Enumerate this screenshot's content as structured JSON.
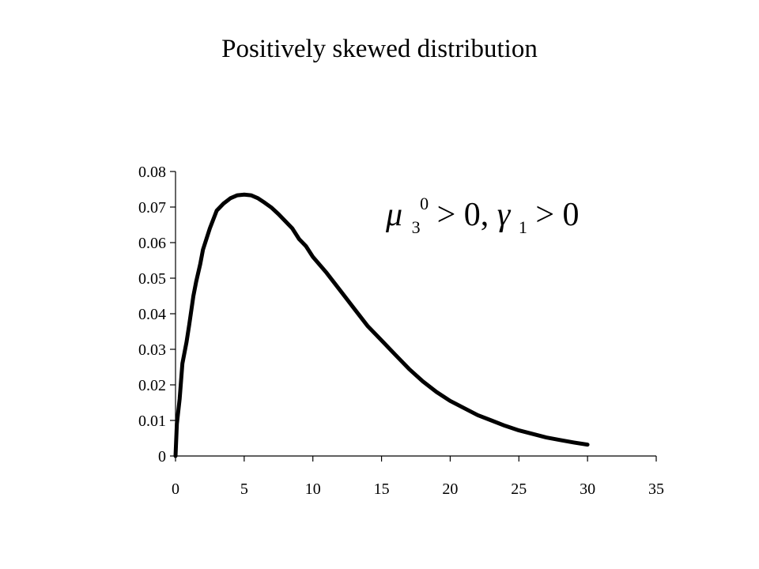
{
  "slide": {
    "title": "Positively skewed distribution"
  },
  "chart_data": {
    "type": "line",
    "title": "Positively skewed distribution",
    "xlabel": "",
    "ylabel": "",
    "xlim": [
      0,
      35
    ],
    "ylim": [
      0,
      0.08
    ],
    "x_ticks": [
      0,
      5,
      10,
      15,
      20,
      25,
      30,
      35
    ],
    "y_ticks": [
      0,
      0.01,
      0.02,
      0.03,
      0.04,
      0.05,
      0.06,
      0.07,
      0.08
    ],
    "x_tick_labels": [
      "0",
      "5",
      "10",
      "15",
      "20",
      "25",
      "30",
      "35"
    ],
    "y_tick_labels": [
      "0",
      "0.01",
      "0.02",
      "0.03",
      "0.04",
      "0.05",
      "0.06",
      "0.07",
      "0.08"
    ],
    "grid": false,
    "legend": "none",
    "line_color": "#000000",
    "annotation": {
      "mu": "μ",
      "mu_sub": "3",
      "mu_sup": "0",
      "mid": " > 0, ",
      "gamma": "γ",
      "gamma_sub": "1",
      "end": " > 0"
    },
    "series": [
      {
        "x": [
          0,
          0.1,
          0.3,
          0.5,
          0.8,
          1,
          1.3,
          1.5,
          1.8,
          2,
          2.5,
          3,
          3.5,
          4,
          4.5,
          5,
          5.5,
          6,
          6.5,
          7,
          7.5,
          8,
          8.5,
          9,
          9.5,
          10,
          11,
          12,
          13,
          14,
          15,
          16,
          17,
          18,
          19,
          20,
          21,
          22,
          23,
          24,
          25,
          26,
          27,
          28,
          29,
          30
        ],
        "y": [
          0,
          0.009,
          0.016,
          0.026,
          0.032,
          0.037,
          0.045,
          0.049,
          0.054,
          0.058,
          0.064,
          0.069,
          0.071,
          0.0725,
          0.0733,
          0.0735,
          0.0733,
          0.0725,
          0.0712,
          0.0698,
          0.068,
          0.066,
          0.064,
          0.061,
          0.059,
          0.056,
          0.0515,
          0.0465,
          0.0415,
          0.0365,
          0.0325,
          0.0285,
          0.0245,
          0.021,
          0.018,
          0.0155,
          0.0135,
          0.0115,
          0.01,
          0.0085,
          0.0072,
          0.0062,
          0.0052,
          0.0045,
          0.0038,
          0.0032
        ]
      }
    ]
  }
}
